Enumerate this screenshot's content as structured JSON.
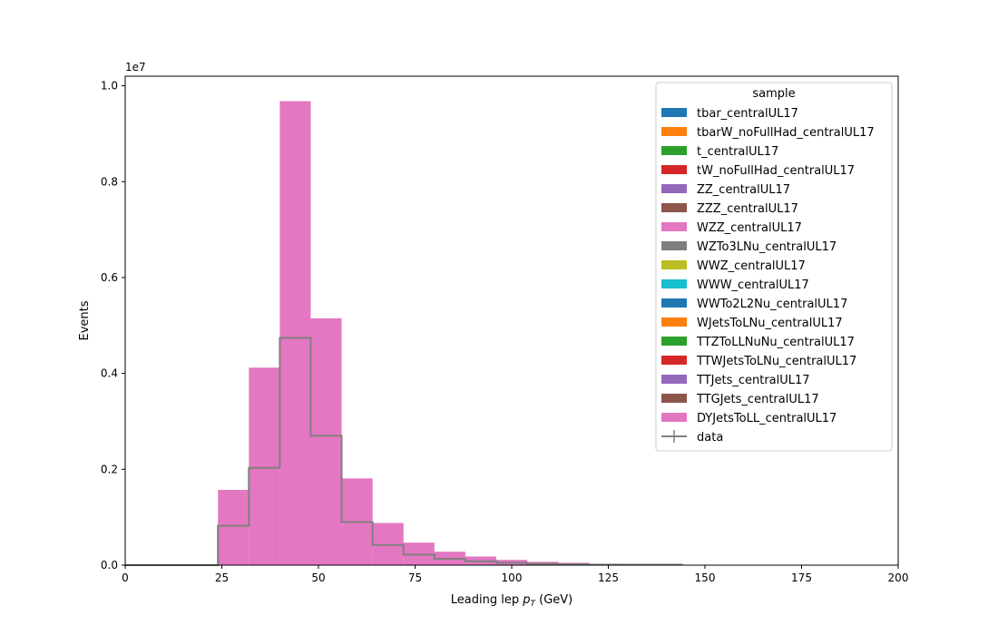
{
  "chart_data": {
    "type": "histogram",
    "xlabel": "Leading lep",
    "xlabel_math": "p",
    "xlabel_sub": "T",
    "xlabel_unit": "(GeV)",
    "ylabel": "Events",
    "y_exponent": "1e7",
    "xlim": [
      0,
      200
    ],
    "ylim": [
      0,
      1.02
    ],
    "xticks": [
      "0",
      "25",
      "50",
      "75",
      "100",
      "125",
      "150",
      "175",
      "200"
    ],
    "yticks": [
      "0.0",
      "0.2",
      "0.4",
      "0.6",
      "0.8",
      "1.0"
    ],
    "bin_edges": [
      24,
      32,
      40,
      48,
      56,
      64,
      72,
      80,
      88,
      96,
      104,
      112,
      120,
      128,
      136,
      144
    ],
    "mc_stacked_values": [
      0.157,
      0.412,
      0.968,
      0.515,
      0.181,
      0.088,
      0.047,
      0.028,
      0.018,
      0.011,
      0.007,
      0.005,
      0.003,
      0.002,
      0.001
    ],
    "data_values": [
      0.082,
      0.203,
      0.474,
      0.27,
      0.09,
      0.042,
      0.022,
      0.013,
      0.008,
      0.005,
      0.003,
      0.002,
      0.001,
      0.001,
      0.001
    ],
    "legend": {
      "title": "sample",
      "position": "upper right",
      "entries": [
        {
          "label": "tbar_centralUL17",
          "color": "#1f77b4"
        },
        {
          "label": "tbarW_noFullHad_centralUL17",
          "color": "#ff7f0e"
        },
        {
          "label": "t_centralUL17",
          "color": "#2ca02c"
        },
        {
          "label": "tW_noFullHad_centralUL17",
          "color": "#d62728"
        },
        {
          "label": "ZZ_centralUL17",
          "color": "#9467bd"
        },
        {
          "label": "ZZZ_centralUL17",
          "color": "#8c564b"
        },
        {
          "label": "WZZ_centralUL17",
          "color": "#e377c2"
        },
        {
          "label": "WZTo3LNu_centralUL17",
          "color": "#7f7f7f"
        },
        {
          "label": "WWZ_centralUL17",
          "color": "#bcbd22"
        },
        {
          "label": "WWW_centralUL17",
          "color": "#17becf"
        },
        {
          "label": "WWTo2L2Nu_centralUL17",
          "color": "#1f77b4"
        },
        {
          "label": "WJetsToLNu_centralUL17",
          "color": "#ff7f0e"
        },
        {
          "label": "TTZToLLNuNu_centralUL17",
          "color": "#2ca02c"
        },
        {
          "label": "TTWJetsToLNu_centralUL17",
          "color": "#d62728"
        },
        {
          "label": "TTJets_centralUL17",
          "color": "#9467bd"
        },
        {
          "label": "TTGJets_centralUL17",
          "color": "#8c564b"
        },
        {
          "label": "DYJetsToLL_centralUL17",
          "color": "#e377c2"
        }
      ],
      "data_entry": {
        "label": "data",
        "color": "#808080"
      }
    },
    "mc_color": "#e377c2",
    "data_color": "#808080",
    "grid": false
  }
}
